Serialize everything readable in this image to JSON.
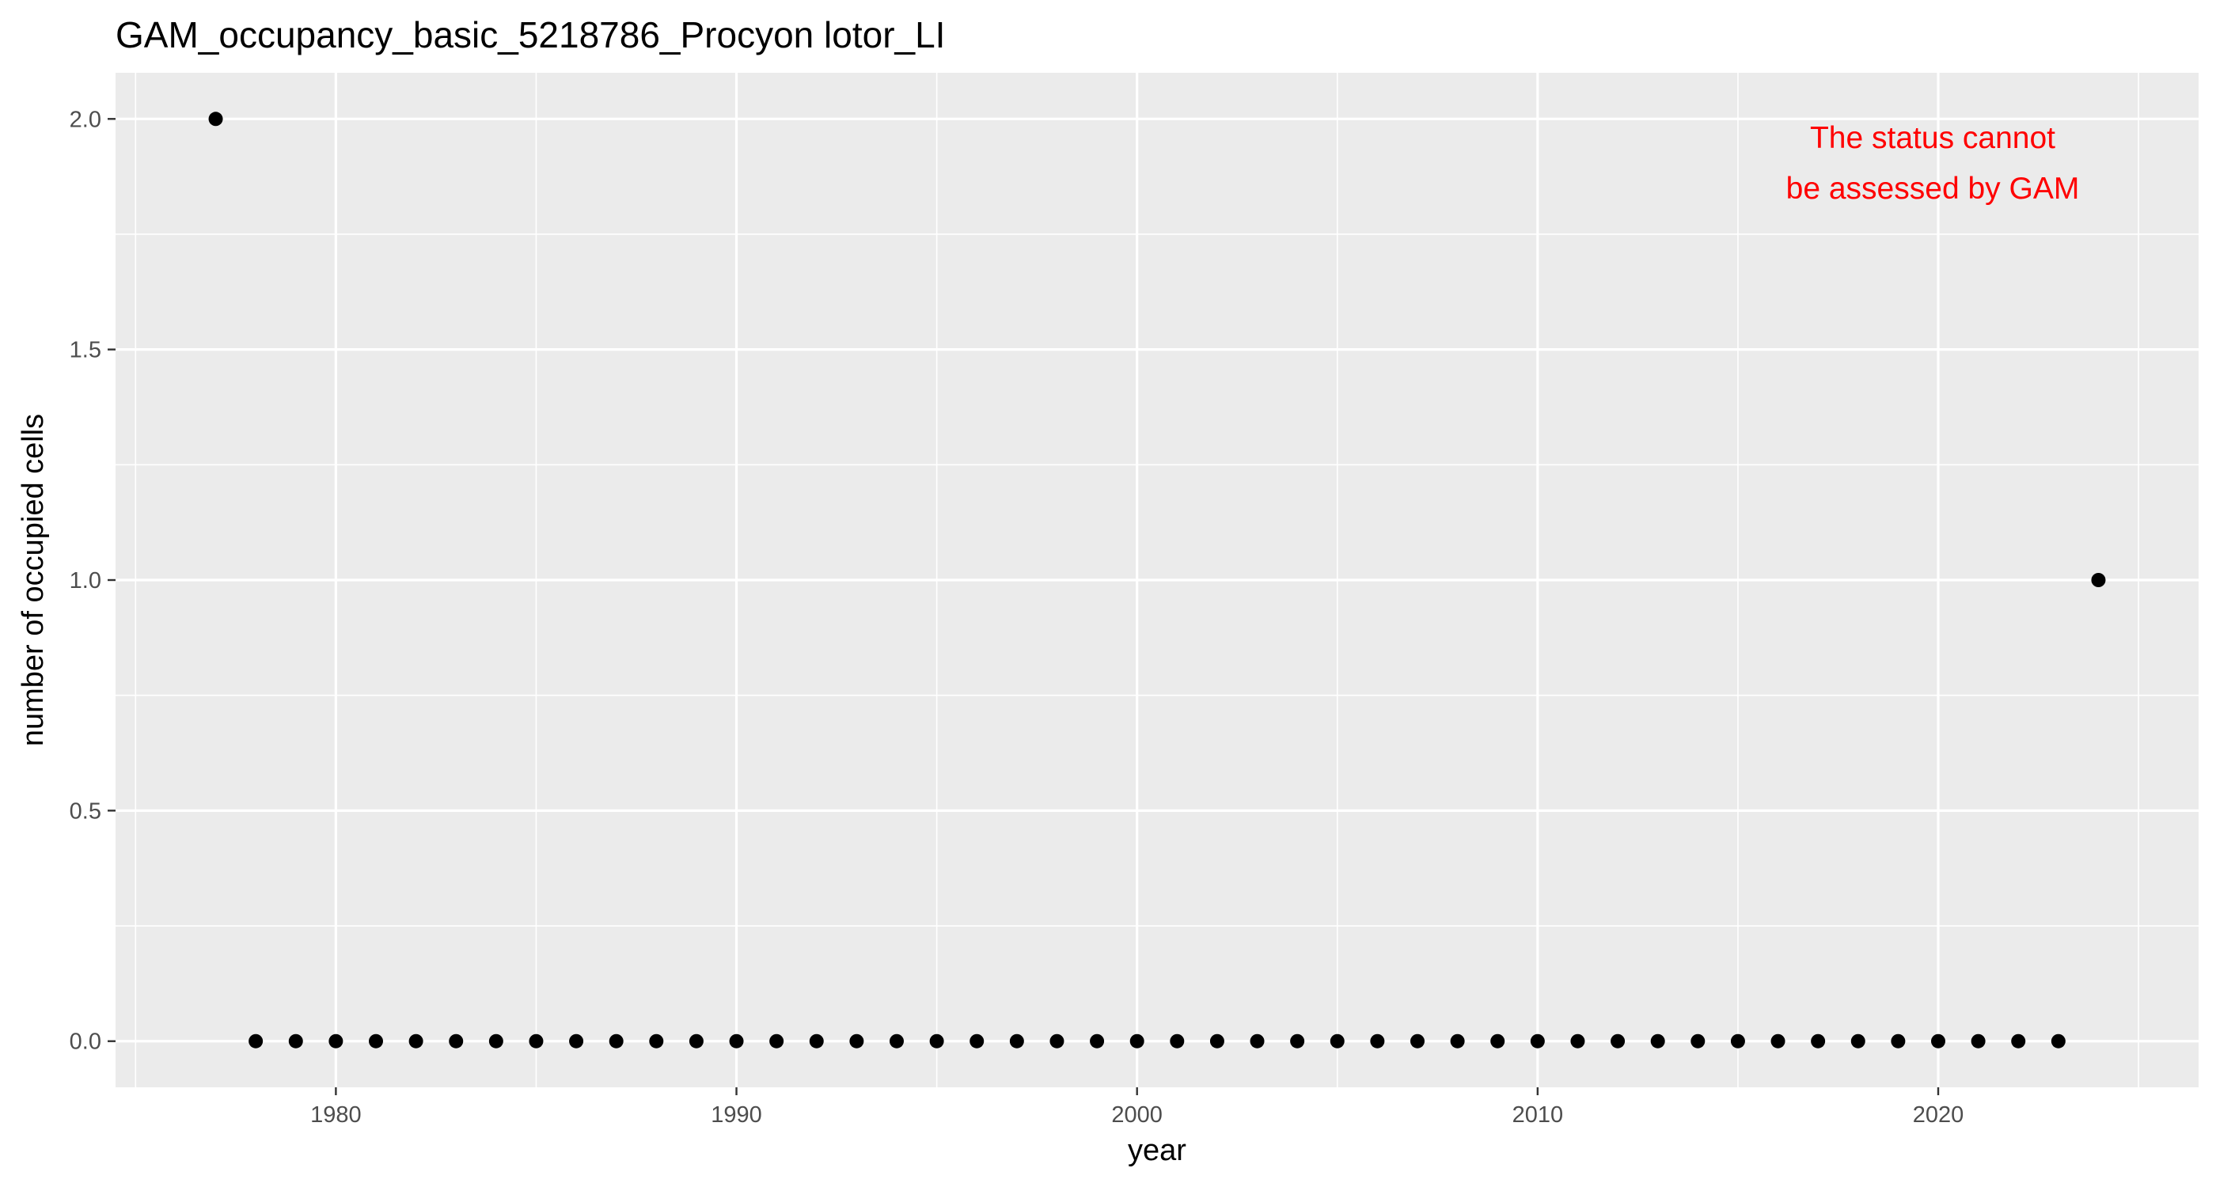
{
  "chart_data": {
    "type": "scatter",
    "title": "GAM_occupancy_basic_5218786_Procyon lotor_LI",
    "xlabel": "year",
    "ylabel": "number of occupied cells",
    "xlim": [
      1974.5,
      2026.5
    ],
    "ylim": [
      -0.1,
      2.1
    ],
    "x_ticks": [
      1980,
      1990,
      2000,
      2010,
      2020
    ],
    "x_tick_labels": [
      "1980",
      "1990",
      "2000",
      "2010",
      "2020"
    ],
    "y_ticks": [
      0.0,
      0.5,
      1.0,
      1.5,
      2.0
    ],
    "y_tick_labels": [
      "0.0",
      "0.5",
      "1.0",
      "1.5",
      "2.0"
    ],
    "grid": true,
    "legend": "none",
    "annotation": {
      "lines": [
        "The status cannot",
        "be assessed by GAM"
      ],
      "color": "#ff0000"
    },
    "colors": {
      "panel_background": "#ebebeb",
      "grid": "#ffffff",
      "point": "#000000"
    },
    "series": [
      {
        "x": [
          1977,
          1978,
          1979,
          1980,
          1981,
          1982,
          1983,
          1984,
          1985,
          1986,
          1987,
          1988,
          1989,
          1990,
          1991,
          1992,
          1993,
          1994,
          1995,
          1996,
          1997,
          1998,
          1999,
          2000,
          2001,
          2002,
          2003,
          2004,
          2005,
          2006,
          2007,
          2008,
          2009,
          2010,
          2011,
          2012,
          2013,
          2014,
          2015,
          2016,
          2017,
          2018,
          2019,
          2020,
          2021,
          2022,
          2023,
          2024
        ],
        "y": [
          2,
          0,
          0,
          0,
          0,
          0,
          0,
          0,
          0,
          0,
          0,
          0,
          0,
          0,
          0,
          0,
          0,
          0,
          0,
          0,
          0,
          0,
          0,
          0,
          0,
          0,
          0,
          0,
          0,
          0,
          0,
          0,
          0,
          0,
          0,
          0,
          0,
          0,
          0,
          0,
          0,
          0,
          0,
          0,
          0,
          0,
          0,
          1
        ]
      }
    ]
  }
}
